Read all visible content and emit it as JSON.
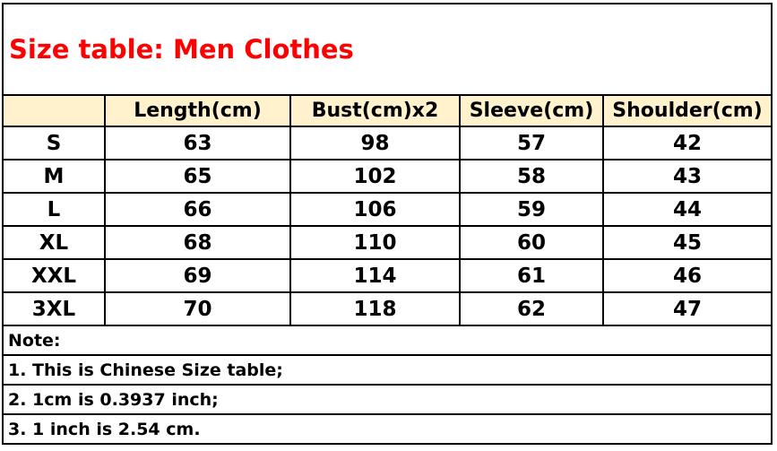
{
  "title": "Size table:  Men Clothes",
  "header_fill": "#fff2cc",
  "title_color": "#ff0000",
  "columns": [
    "",
    "Length(cm)",
    "Bust(cm)x2",
    "Sleeve(cm)",
    "Shoulder(cm)"
  ],
  "rows": [
    [
      "S",
      "63",
      "98",
      "57",
      "42"
    ],
    [
      "M",
      "65",
      "102",
      "58",
      "43"
    ],
    [
      "L",
      "66",
      "106",
      "59",
      "44"
    ],
    [
      "XL",
      "68",
      "110",
      "60",
      "45"
    ],
    [
      "XXL",
      "69",
      "114",
      "61",
      "46"
    ],
    [
      "3XL",
      "70",
      "118",
      "62",
      "47"
    ]
  ],
  "notes": [
    "Note:",
    "1. This is Chinese Size table;",
    "2. 1cm is 0.3937 inch;",
    "3. 1 inch is 2.54 cm."
  ]
}
